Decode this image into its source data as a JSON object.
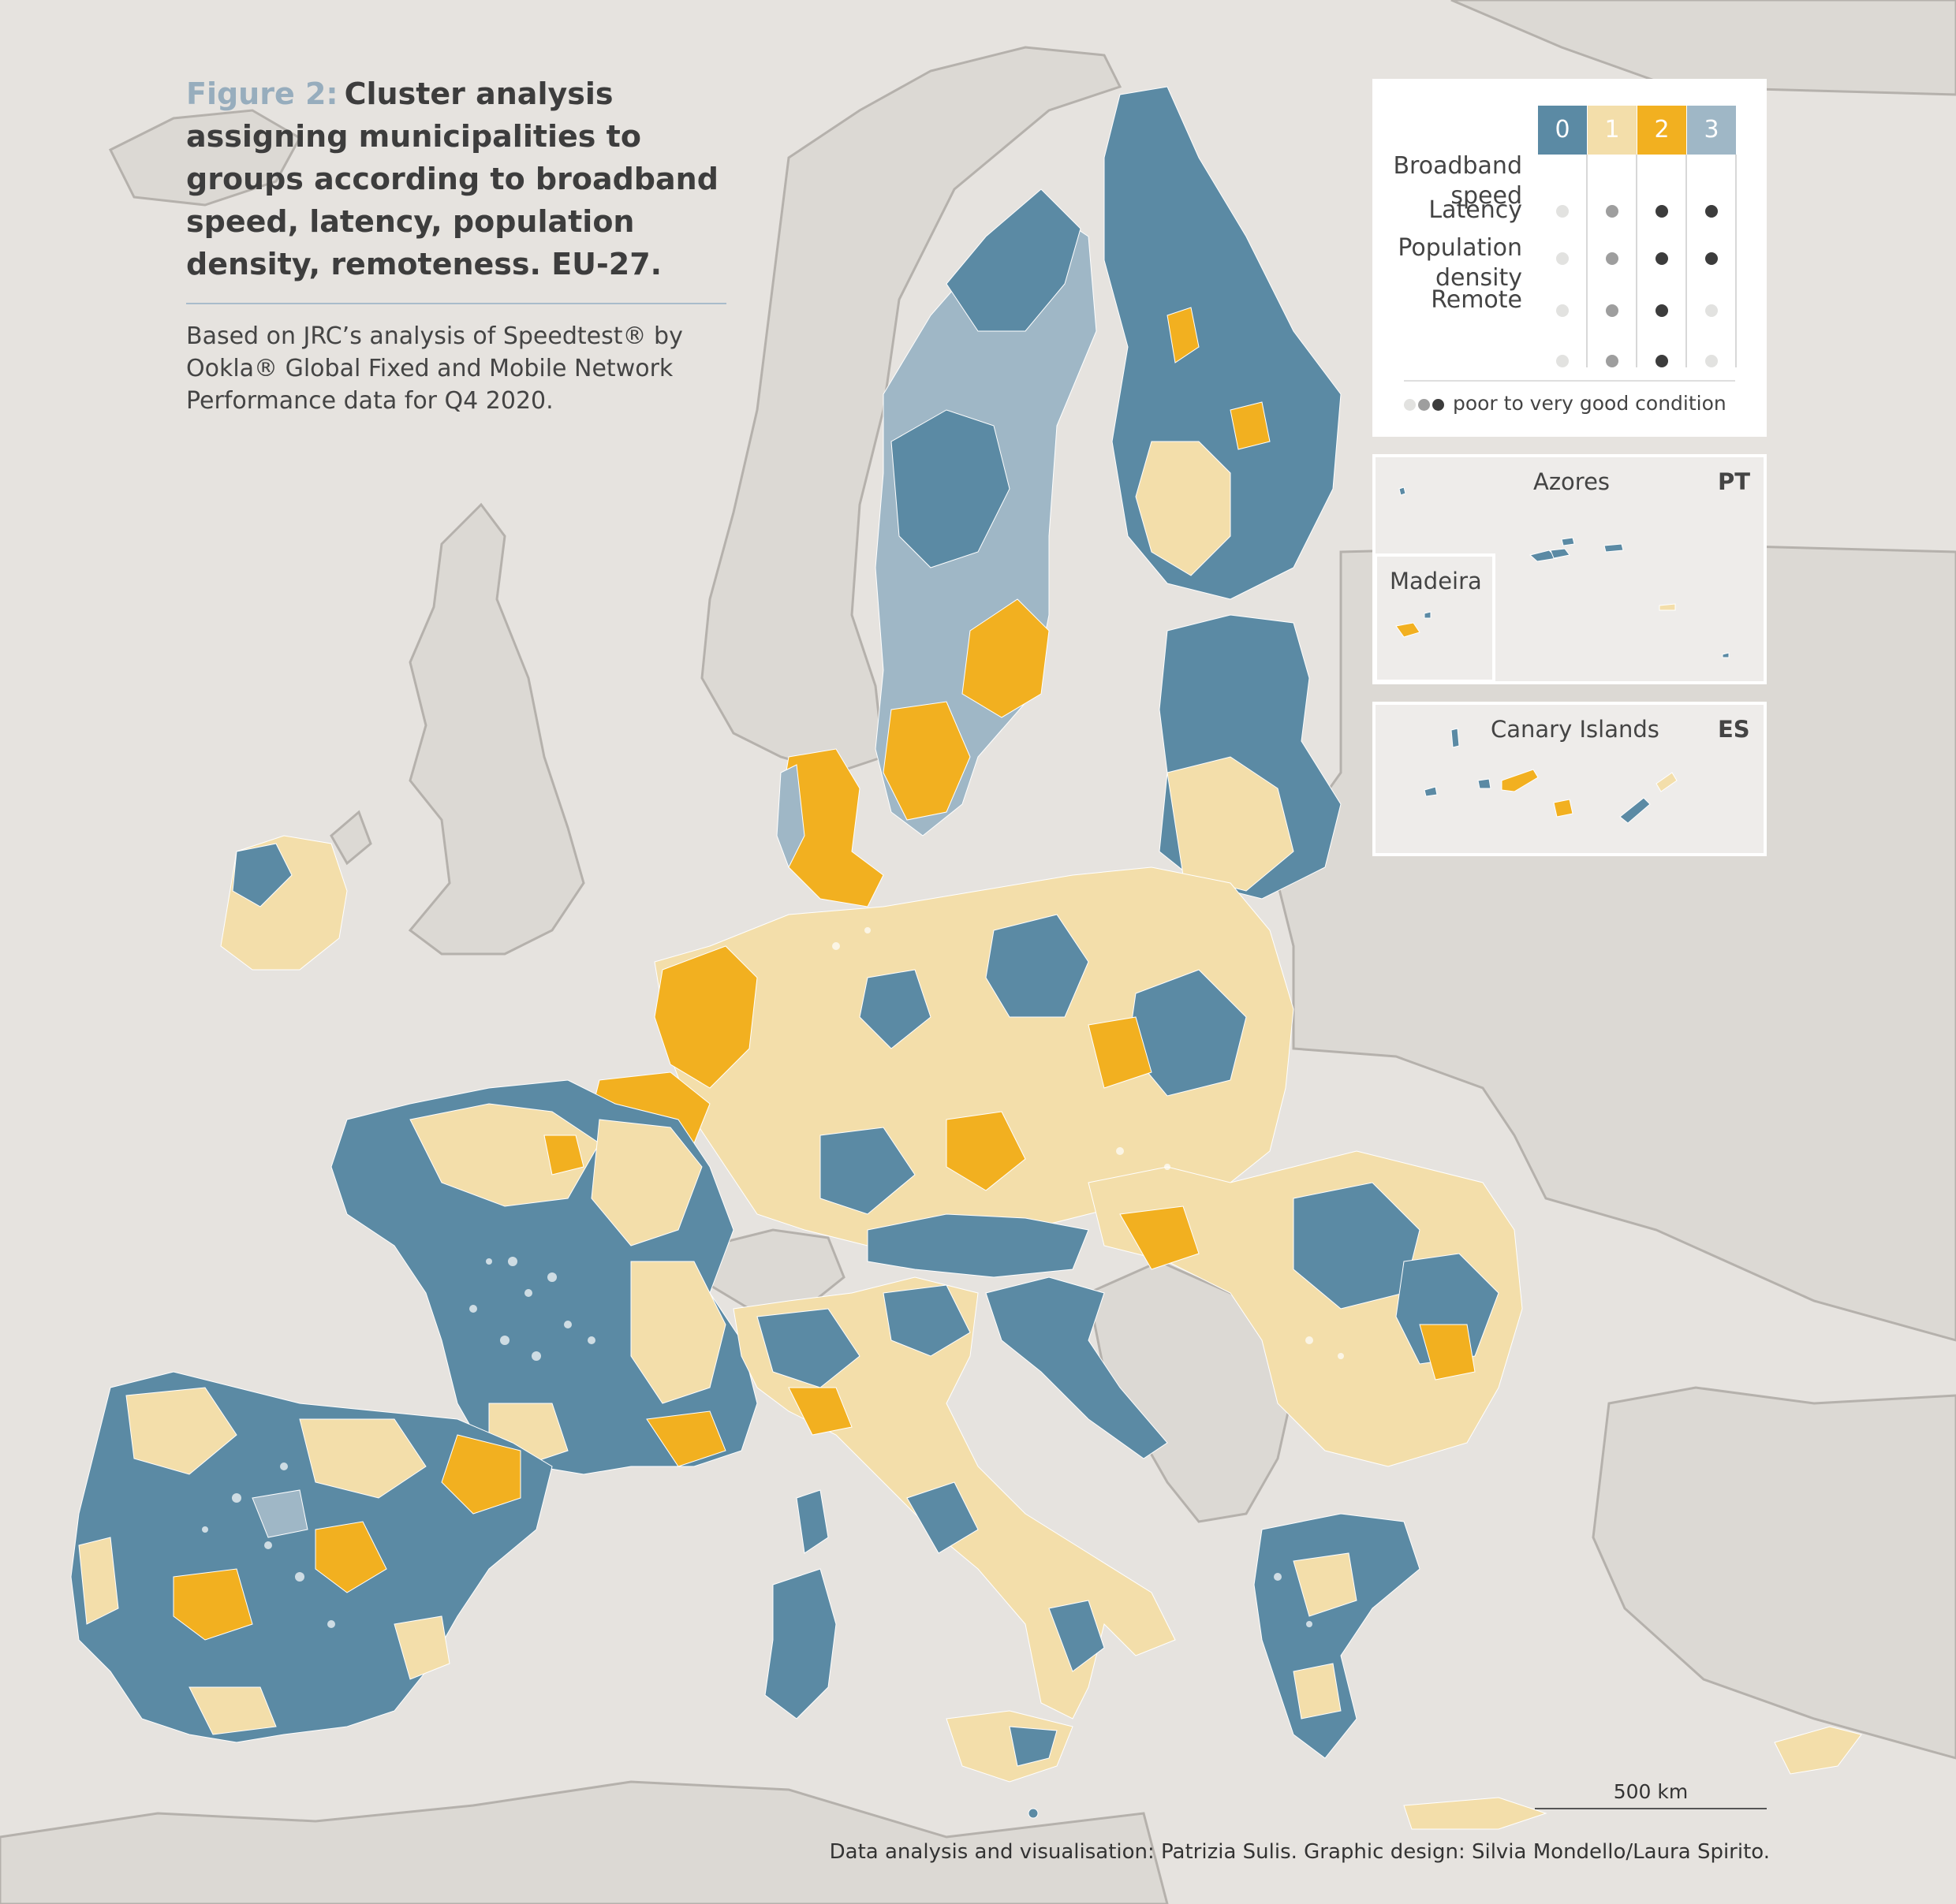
{
  "colors": {
    "sea": "#e6e3df",
    "land_other": "#dcd9d4",
    "land_outline": "#b5b1ac",
    "cluster_0": "#5b8aa4",
    "cluster_1": "#f3deaa",
    "cluster_2": "#f2b020",
    "cluster_3": "#9fb7c6",
    "title_prefix": "#97adbd"
  },
  "title": {
    "prefix": "Figure 2:",
    "text": "Cluster analysis assigning municipalities to groups according to broadband speed, latency, population density, remoteness. EU-27.",
    "subtitle": "Based on JRC’s analysis of Speedtest® by Ookla® Global Fixed and Mobile Network Performance data for Q4 2020."
  },
  "legend": {
    "clusters": [
      {
        "label": "0",
        "color_key": "cluster_0",
        "text_color": "#ffffff"
      },
      {
        "label": "1",
        "color_key": "cluster_1",
        "text_color": "#ffffff"
      },
      {
        "label": "2",
        "color_key": "cluster_2",
        "text_color": "#ffffff"
      },
      {
        "label": "3",
        "color_key": "cluster_3",
        "text_color": "#ffffff"
      }
    ],
    "rows": [
      {
        "label": "Broadband speed",
        "levels": [
          0,
          1,
          2,
          2
        ]
      },
      {
        "label": "Latency",
        "levels": [
          0,
          1,
          2,
          2
        ]
      },
      {
        "label": "Population density",
        "levels": [
          0,
          1,
          2,
          0
        ]
      },
      {
        "label": "Remote",
        "levels": [
          0,
          1,
          2,
          0
        ]
      }
    ],
    "level_colors": [
      "#e2e2e0",
      "#9e9e9e",
      "#3c3c3c"
    ],
    "footnote": "poor to very good condition"
  },
  "insets": {
    "azores": {
      "name": "Azores",
      "country": "PT"
    },
    "madeira": {
      "name": "Madeira"
    },
    "canary": {
      "name": "Canary Islands",
      "country": "ES"
    }
  },
  "scale": {
    "label": "500 km"
  },
  "credits": "Data analysis and visualisation: Patrizia Sulis. Graphic design: Silvia Mondello/Laura Spirito."
}
